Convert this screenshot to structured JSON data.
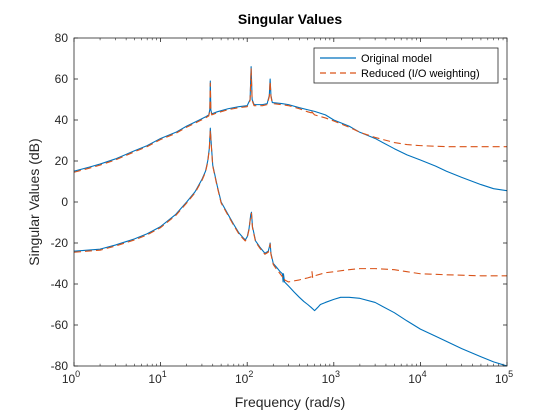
{
  "chart_data": {
    "type": "line",
    "title": "Singular Values",
    "xlabel": "Frequency (rad/s)",
    "ylabel": "Singular Values (dB)",
    "xscale": "log",
    "xlim": [
      1,
      100000
    ],
    "ylim": [
      -80,
      80
    ],
    "x_ticks": [
      {
        "value": 1,
        "base": "10",
        "exp": "0"
      },
      {
        "value": 10,
        "base": "10",
        "exp": "1"
      },
      {
        "value": 100,
        "base": "10",
        "exp": "2"
      },
      {
        "value": 1000,
        "base": "10",
        "exp": "3"
      },
      {
        "value": 10000,
        "base": "10",
        "exp": "4"
      },
      {
        "value": 100000,
        "base": "10",
        "exp": "5"
      }
    ],
    "y_ticks": [
      {
        "value": -80,
        "label": "-80"
      },
      {
        "value": -60,
        "label": "-60"
      },
      {
        "value": -40,
        "label": "-40"
      },
      {
        "value": -20,
        "label": "-20"
      },
      {
        "value": 0,
        "label": "0"
      },
      {
        "value": 20,
        "label": "20"
      },
      {
        "value": 40,
        "label": "40"
      },
      {
        "value": 60,
        "label": "60"
      },
      {
        "value": 80,
        "label": "80"
      }
    ],
    "grid": false,
    "box": true,
    "legend": {
      "position": "top-right",
      "entries": [
        {
          "label": "Original model",
          "color": "#0072BD",
          "style": "solid"
        },
        {
          "label": "Reduced (I/O weighting)",
          "color": "#D95319",
          "style": "dashed"
        }
      ]
    },
    "series": [
      {
        "name": "Original model",
        "color": "#0072BD",
        "style": "solid",
        "curves": [
          [
            [
              1,
              15
            ],
            [
              1.5,
              17
            ],
            [
              2,
              18.5
            ],
            [
              3,
              21
            ],
            [
              5,
              25
            ],
            [
              7,
              27.5
            ],
            [
              10,
              31
            ],
            [
              15,
              34
            ],
            [
              20,
              37
            ],
            [
              28,
              40
            ],
            [
              33,
              41.5
            ],
            [
              36,
              42.5
            ],
            [
              37,
              45
            ],
            [
              37.5,
              59
            ],
            [
              38,
              45
            ],
            [
              39,
              43
            ],
            [
              45,
              44
            ],
            [
              60,
              45.5
            ],
            [
              80,
              46.5
            ],
            [
              100,
              47
            ],
            [
              108,
              50
            ],
            [
              111,
              66
            ],
            [
              114,
              50
            ],
            [
              120,
              47.5
            ],
            [
              150,
              47.5
            ],
            [
              170,
              48
            ],
            [
              180,
              52
            ],
            [
              184,
              60
            ],
            [
              188,
              52
            ],
            [
              195,
              48.5
            ],
            [
              250,
              48
            ],
            [
              300,
              47.5
            ],
            [
              400,
              46
            ],
            [
              500,
              45
            ],
            [
              600,
              44.2
            ],
            [
              800,
              42.5
            ],
            [
              1000,
              40
            ],
            [
              1500,
              37
            ],
            [
              2000,
              34
            ],
            [
              3000,
              31
            ],
            [
              5000,
              26
            ],
            [
              7000,
              23
            ],
            [
              10000,
              20.5
            ],
            [
              15000,
              17.5
            ],
            [
              20000,
              15
            ],
            [
              30000,
              12
            ],
            [
              50000,
              8.5
            ],
            [
              70000,
              6.5
            ],
            [
              100000,
              5.5
            ]
          ],
          [
            [
              1,
              -24
            ],
            [
              2,
              -23
            ],
            [
              3,
              -21
            ],
            [
              5,
              -18
            ],
            [
              7,
              -15.5
            ],
            [
              10,
              -12
            ],
            [
              15,
              -6
            ],
            [
              20,
              0
            ],
            [
              25,
              5
            ],
            [
              30,
              11
            ],
            [
              33,
              15
            ],
            [
              35,
              20
            ],
            [
              36.5,
              26
            ],
            [
              37.5,
              36
            ],
            [
              38.5,
              28
            ],
            [
              40,
              18
            ],
            [
              45,
              8
            ],
            [
              50,
              0
            ],
            [
              60,
              -6
            ],
            [
              70,
              -11
            ],
            [
              80,
              -15
            ],
            [
              90,
              -17.5
            ],
            [
              95,
              -18.5
            ],
            [
              100,
              -17
            ],
            [
              105,
              -13
            ],
            [
              110,
              -6
            ],
            [
              112,
              -5
            ],
            [
              115,
              -12
            ],
            [
              125,
              -19
            ],
            [
              140,
              -22
            ],
            [
              160,
              -25
            ],
            [
              175,
              -24
            ],
            [
              180,
              -22
            ],
            [
              184,
              -20
            ],
            [
              188,
              -25
            ],
            [
              200,
              -30
            ],
            [
              220,
              -32
            ],
            [
              240,
              -34
            ],
            [
              255,
              -35
            ],
            [
              260,
              -39
            ],
            [
              262,
              -35
            ],
            [
              270,
              -39
            ],
            [
              300,
              -41
            ],
            [
              350,
              -44
            ],
            [
              400,
              -46.5
            ],
            [
              450,
              -48.5
            ],
            [
              500,
              -50
            ],
            [
              550,
              -51.5
            ],
            [
              600,
              -53
            ],
            [
              650,
              -51.5
            ],
            [
              700,
              -50
            ],
            [
              800,
              -49
            ],
            [
              1000,
              -47.5
            ],
            [
              1200,
              -46.5
            ],
            [
              1500,
              -46.5
            ],
            [
              2000,
              -47
            ],
            [
              3000,
              -49
            ],
            [
              5000,
              -54
            ],
            [
              7000,
              -58
            ],
            [
              10000,
              -62
            ],
            [
              15000,
              -65.5
            ],
            [
              20000,
              -68
            ],
            [
              30000,
              -71.5
            ],
            [
              50000,
              -75.5
            ],
            [
              70000,
              -78
            ],
            [
              100000,
              -80
            ]
          ]
        ]
      },
      {
        "name": "Reduced (I/O weighting)",
        "color": "#D95319",
        "style": "dashed",
        "curves": [
          [
            [
              1,
              14.5
            ],
            [
              1.5,
              16.5
            ],
            [
              2,
              18
            ],
            [
              3,
              20.5
            ],
            [
              5,
              24.5
            ],
            [
              7,
              27
            ],
            [
              10,
              30.5
            ],
            [
              15,
              33.5
            ],
            [
              20,
              36.5
            ],
            [
              28,
              39.5
            ],
            [
              33,
              41
            ],
            [
              36,
              42
            ],
            [
              37,
              44.5
            ],
            [
              37.5,
              58
            ],
            [
              38,
              44.5
            ],
            [
              39,
              42.5
            ],
            [
              45,
              43.5
            ],
            [
              60,
              45
            ],
            [
              80,
              46
            ],
            [
              100,
              46.5
            ],
            [
              108,
              49.5
            ],
            [
              111,
              65
            ],
            [
              114,
              49.5
            ],
            [
              120,
              47
            ],
            [
              150,
              47
            ],
            [
              170,
              47.5
            ],
            [
              180,
              51.5
            ],
            [
              184,
              59
            ],
            [
              188,
              51.5
            ],
            [
              195,
              48
            ],
            [
              250,
              47.5
            ],
            [
              300,
              47
            ],
            [
              400,
              45.5
            ],
            [
              500,
              44
            ],
            [
              550,
              43.5
            ],
            [
              560,
              45
            ],
            [
              570,
              43.5
            ],
            [
              600,
              42.5
            ],
            [
              800,
              41
            ],
            [
              1000,
              39.5
            ],
            [
              1500,
              36.5
            ],
            [
              2000,
              34
            ],
            [
              3000,
              31.5
            ],
            [
              5000,
              29
            ],
            [
              7000,
              28
            ],
            [
              10000,
              27.5
            ],
            [
              20000,
              27
            ],
            [
              50000,
              27
            ],
            [
              100000,
              27
            ]
          ],
          [
            [
              1,
              -24.5
            ],
            [
              2,
              -23.5
            ],
            [
              3,
              -21.5
            ],
            [
              5,
              -18.5
            ],
            [
              7,
              -16
            ],
            [
              10,
              -12.5
            ],
            [
              15,
              -6.5
            ],
            [
              20,
              -0.5
            ],
            [
              25,
              4.5
            ],
            [
              30,
              10.5
            ],
            [
              33,
              14.5
            ],
            [
              35,
              19.5
            ],
            [
              36.5,
              25.5
            ],
            [
              37.5,
              35
            ],
            [
              38.5,
              27.5
            ],
            [
              40,
              17.5
            ],
            [
              45,
              7.5
            ],
            [
              50,
              -0.5
            ],
            [
              60,
              -6.5
            ],
            [
              70,
              -11.5
            ],
            [
              80,
              -15.5
            ],
            [
              90,
              -18
            ],
            [
              95,
              -19
            ],
            [
              100,
              -17.5
            ],
            [
              105,
              -13.5
            ],
            [
              110,
              -6.5
            ],
            [
              112,
              -5.5
            ],
            [
              115,
              -12.5
            ],
            [
              125,
              -19.5
            ],
            [
              140,
              -22.5
            ],
            [
              160,
              -25.5
            ],
            [
              175,
              -24.5
            ],
            [
              180,
              -22.5
            ],
            [
              184,
              -20.5
            ],
            [
              188,
              -25.5
            ],
            [
              200,
              -30.5
            ],
            [
              220,
              -33
            ],
            [
              240,
              -35
            ],
            [
              255,
              -36.5
            ],
            [
              262,
              -36
            ],
            [
              270,
              -38
            ],
            [
              300,
              -39
            ],
            [
              400,
              -38
            ],
            [
              500,
              -37
            ],
            [
              550,
              -36.5
            ],
            [
              560,
              -34
            ],
            [
              570,
              -37
            ],
            [
              600,
              -36
            ],
            [
              800,
              -34.5
            ],
            [
              1000,
              -34
            ],
            [
              1500,
              -33
            ],
            [
              2000,
              -32.5
            ],
            [
              3000,
              -32.5
            ],
            [
              5000,
              -33
            ],
            [
              7000,
              -34
            ],
            [
              10000,
              -35
            ],
            [
              20000,
              -35.5
            ],
            [
              50000,
              -36
            ],
            [
              100000,
              -36
            ]
          ]
        ]
      }
    ]
  }
}
